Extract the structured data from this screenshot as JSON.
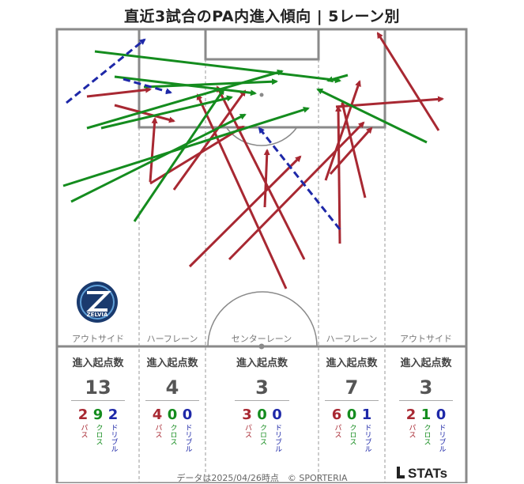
{
  "title": "直近3試合のPA内進入傾向 | 5レーン別",
  "lane_labels": [
    "アウトサイド",
    "ハーフレーン",
    "センターレーン",
    "ハーフレーン",
    "アウトサイド"
  ],
  "stats_header": "進入起点数",
  "count_labels": {
    "pass": "パス",
    "cross": "クロス",
    "dribble": "ドリブル"
  },
  "lanes": [
    {
      "total": "13",
      "pass": "2",
      "cross": "9",
      "dribble": "2"
    },
    {
      "total": "4",
      "pass": "4",
      "cross": "0",
      "dribble": "0"
    },
    {
      "total": "3",
      "pass": "3",
      "cross": "0",
      "dribble": "0"
    },
    {
      "total": "7",
      "pass": "6",
      "cross": "0",
      "dribble": "1"
    },
    {
      "total": "3",
      "pass": "2",
      "cross": "1",
      "dribble": "0"
    }
  ],
  "colors": {
    "pass": "#a82832",
    "cross": "#148c1e",
    "dribble": "#1e28a8"
  },
  "logo_text": "ZELVIA",
  "footer": "データは2025/04/26時点　© SPORTERIA",
  "brand": "STATs"
}
